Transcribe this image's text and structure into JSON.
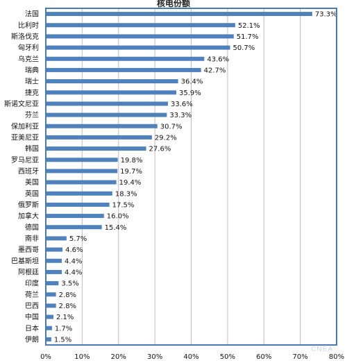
{
  "chart_data": {
    "type": "bar",
    "orientation": "horizontal",
    "title": "核电份额",
    "categories": [
      "法国",
      "比利时",
      "斯洛伐克",
      "匈牙利",
      "乌克兰",
      "瑞典",
      "瑞士",
      "捷克",
      "斯诺文尼亚",
      "芬兰",
      "保加利亚",
      "亚美尼亚",
      "韩国",
      "罗马尼亚",
      "西班牙",
      "美国",
      "英国",
      "俄罗斯",
      "加拿大",
      "德国",
      "南非",
      "墨西哥",
      "巴基斯坦",
      "阿根廷",
      "印度",
      "荷兰",
      "巴西",
      "中国",
      "日本",
      "伊朗"
    ],
    "values": [
      73.3,
      52.1,
      51.7,
      50.7,
      43.6,
      42.7,
      36.4,
      35.9,
      33.6,
      33.3,
      30.7,
      29.2,
      27.6,
      19.8,
      19.7,
      19.4,
      18.3,
      17.5,
      16.0,
      15.4,
      5.7,
      4.6,
      4.4,
      4.4,
      3.5,
      2.8,
      2.8,
      2.1,
      1.7,
      1.5
    ],
    "labels": [
      "73.3%",
      "52.1%",
      "51.7%",
      "50.7%",
      "43.6%",
      "42.7%",
      "36.4%",
      "35.9%",
      "33.6%",
      "33.3%",
      "30.7%",
      "29.2%",
      "27.6%",
      "19.8%",
      "19.7%",
      "19.4%",
      "18.3%",
      "17.5%",
      "16.0%",
      "15.4%",
      "5.7%",
      "4.6%",
      "4.4%",
      "4.4%",
      "3.5%",
      "2.8%",
      "2.8%",
      "2.1%",
      "1.7%",
      "1.5%"
    ],
    "xlim": [
      0,
      80
    ],
    "xticks": [
      0,
      10,
      20,
      30,
      40,
      50,
      60,
      70,
      80
    ],
    "xtick_labels": [
      "0%",
      "10%",
      "20%",
      "30%",
      "40%",
      "50%",
      "60%",
      "70%",
      "80%"
    ],
    "grid": "vertical",
    "bar_color": "#4f81bd",
    "axis_color": "#4a7ab5"
  },
  "watermark": "CNEA"
}
